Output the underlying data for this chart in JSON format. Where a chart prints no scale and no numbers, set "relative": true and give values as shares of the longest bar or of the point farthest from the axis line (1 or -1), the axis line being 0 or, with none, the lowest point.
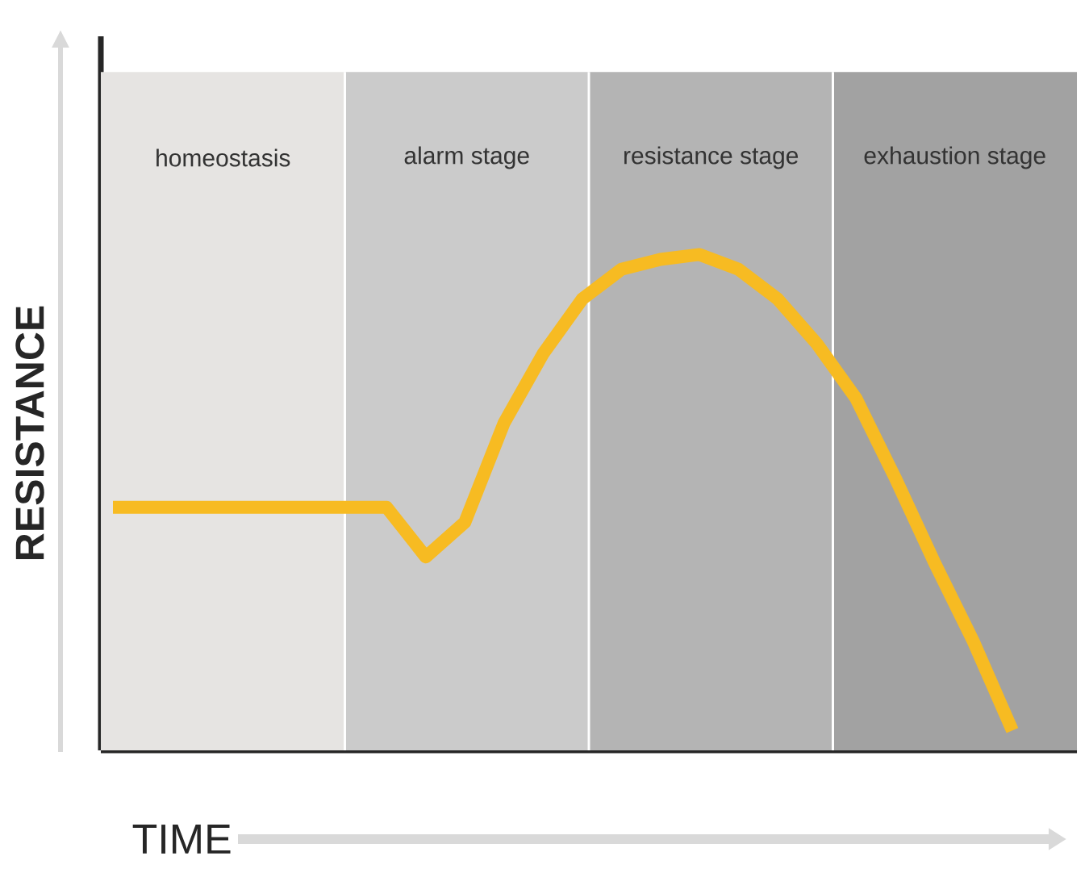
{
  "chart_data": {
    "type": "line",
    "relative": true,
    "xlabel": "TIME",
    "ylabel": "RESISTANCE",
    "categories": [
      null,
      null,
      null,
      null,
      null,
      null,
      null,
      null,
      null,
      null,
      null,
      null,
      null,
      null,
      null,
      null,
      null,
      null,
      null,
      null,
      null,
      null,
      null,
      null
    ],
    "series": [
      {
        "color": "#f7bb22",
        "values": [
          0.49,
          0.49,
          0.49,
          0.49,
          0.49,
          0.49,
          0.49,
          0.49,
          0.39,
          0.46,
          0.66,
          0.8,
          0.91,
          0.97,
          0.99,
          1,
          0.97,
          0.91,
          0.82,
          0.71,
          0.55,
          0.38,
          0.22,
          0.04
        ]
      }
    ],
    "annotations": [
      "homeostasis",
      "alarm stage",
      "resistance stage",
      "exhaustion stage"
    ]
  }
}
